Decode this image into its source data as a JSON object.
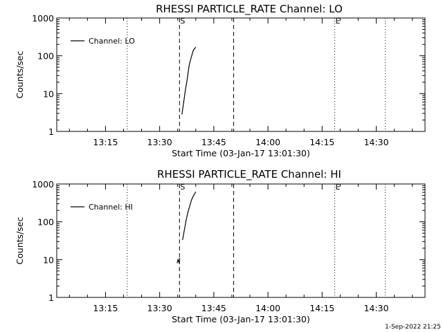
{
  "chart_data": [
    {
      "type": "line",
      "title": "RHESSI PARTICLE_RATE Channel: LO",
      "xlabel": "Start Time (03-Jan-17 13:01:30)",
      "ylabel": "Counts/sec",
      "yscale": "log",
      "ylim": [
        1,
        1000
      ],
      "xlim": [
        "13:01:30",
        "14:43:30"
      ],
      "yticks": [
        1,
        10,
        100,
        1000
      ],
      "ytick_labels": [
        "1",
        "10",
        "100",
        "1000"
      ],
      "xticks": [
        "13:15",
        "13:30",
        "13:45",
        "14:00",
        "14:15",
        "14:30"
      ],
      "legend": {
        "position": "top-left",
        "entries": [
          "Channel: LO"
        ]
      },
      "series": [
        {
          "name": "Channel: LO",
          "x": [
            "13:36:10",
            "13:36:40",
            "13:37:10",
            "13:37:40",
            "13:38:10",
            "13:38:40",
            "13:39:20",
            "13:40:00"
          ],
          "y": [
            2.8,
            6,
            13,
            25,
            55,
            85,
            140,
            170
          ]
        }
      ],
      "vlines": [
        {
          "x": "13:21:00",
          "style": "dotted"
        },
        {
          "x": "13:35:30",
          "style": "dashed",
          "label": "S"
        },
        {
          "x": "13:50:30",
          "style": "dashed"
        },
        {
          "x": "14:18:30",
          "style": "dotted",
          "label": "E"
        },
        {
          "x": "14:32:30",
          "style": "dotted"
        }
      ]
    },
    {
      "type": "line",
      "title": "RHESSI PARTICLE_RATE Channel: HI",
      "xlabel": "Start Time (03-Jan-17 13:01:30)",
      "ylabel": "Counts/sec",
      "yscale": "log",
      "ylim": [
        1,
        1000
      ],
      "xlim": [
        "13:01:30",
        "14:43:30"
      ],
      "yticks": [
        1,
        10,
        100,
        1000
      ],
      "ytick_labels": [
        "1",
        "10",
        "100",
        "1000"
      ],
      "xticks": [
        "13:15",
        "13:30",
        "13:45",
        "14:00",
        "14:15",
        "14:30"
      ],
      "legend": {
        "position": "top-left",
        "entries": [
          "Channel: HI"
        ]
      },
      "series": [
        {
          "name": "Channel: HI",
          "segments": [
            {
              "x": [
                "13:34:50",
                "13:35:05",
                "13:35:20",
                "13:35:35"
              ],
              "y": [
                8,
                10,
                8.5,
                11
              ]
            },
            {
              "x": [
                "13:36:20",
                "13:36:50",
                "13:37:20",
                "13:37:50",
                "13:38:20",
                "13:38:50",
                "13:39:20",
                "13:40:00"
              ],
              "y": [
                33,
                60,
                110,
                180,
                260,
                380,
                480,
                620
              ]
            }
          ]
        }
      ],
      "vlines": [
        {
          "x": "13:21:00",
          "style": "dotted"
        },
        {
          "x": "13:35:30",
          "style": "dashed",
          "label": "S"
        },
        {
          "x": "13:50:30",
          "style": "dashed"
        },
        {
          "x": "14:18:30",
          "style": "dotted",
          "label": "E"
        },
        {
          "x": "14:32:30",
          "style": "dotted"
        }
      ]
    }
  ],
  "footer": {
    "timestamp": "1-Sep-2022 21:25"
  }
}
